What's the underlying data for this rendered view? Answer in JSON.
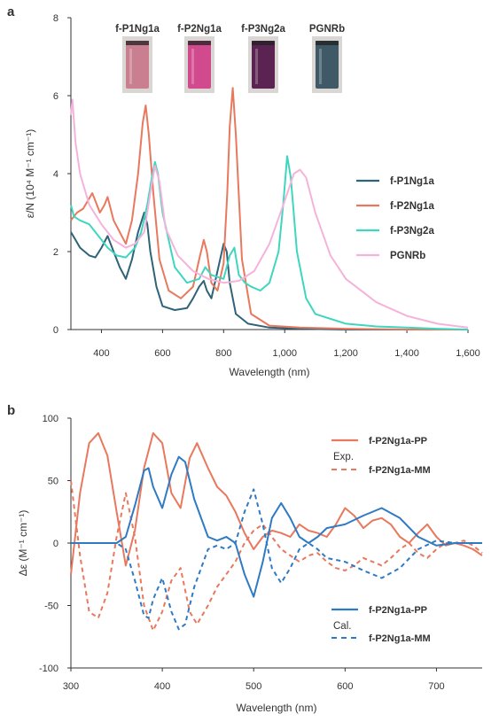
{
  "chart_data": [
    {
      "panel": "a",
      "type": "line",
      "xlabel": "Wavelength (nm)",
      "ylabel": "ε/N (10⁴ M⁻¹ cm⁻¹)",
      "xlim": [
        300,
        1600
      ],
      "ylim": [
        0,
        8
      ],
      "xticks": [
        "400",
        "600",
        "800",
        "1,000",
        "1,200",
        "1,400",
        "1,600"
      ],
      "yticks": [
        "0",
        "2",
        "4",
        "6",
        "8"
      ],
      "vial_labels": [
        "f-P1Ng1a",
        "f-P2Ng1a",
        "f-P3Ng2a",
        "PGNRb"
      ],
      "vial_colors": [
        "#c97f8f",
        "#d24a8e",
        "#5a2351",
        "#3f5a66"
      ],
      "legend_position": "right",
      "series": [
        {
          "name": "f-P1Ng1a",
          "color": "#2e6378",
          "x": [
            300,
            315,
            330,
            360,
            380,
            400,
            420,
            440,
            460,
            480,
            500,
            520,
            540,
            550,
            560,
            580,
            600,
            620,
            640,
            680,
            700,
            720,
            735,
            745,
            760,
            780,
            800,
            810,
            820,
            840,
            880,
            950,
            1050,
            1200,
            1400,
            1600
          ],
          "y": [
            2.5,
            2.3,
            2.1,
            1.9,
            1.85,
            2.1,
            2.4,
            2.0,
            1.6,
            1.3,
            1.8,
            2.5,
            3.0,
            2.7,
            2.0,
            1.1,
            0.6,
            0.55,
            0.5,
            0.55,
            0.8,
            1.1,
            1.25,
            1.0,
            0.8,
            1.5,
            2.2,
            2.0,
            1.2,
            0.4,
            0.15,
            0.05,
            0.02,
            0.0,
            0.0,
            0.0
          ]
        },
        {
          "name": "f-P2Ng1a",
          "color": "#e8785e",
          "x": [
            300,
            320,
            340,
            355,
            370,
            380,
            395,
            410,
            420,
            440,
            460,
            480,
            500,
            520,
            535,
            545,
            555,
            570,
            590,
            620,
            660,
            700,
            720,
            735,
            745,
            760,
            780,
            800,
            812,
            820,
            830,
            840,
            860,
            890,
            950,
            1050,
            1200,
            1400,
            1600
          ],
          "y": [
            2.8,
            3.0,
            3.1,
            3.3,
            3.5,
            3.3,
            3.0,
            3.2,
            3.4,
            2.8,
            2.5,
            2.2,
            2.8,
            4.0,
            5.3,
            5.75,
            5.0,
            3.5,
            1.8,
            1.0,
            0.8,
            1.1,
            1.8,
            2.3,
            2.0,
            1.2,
            1.0,
            1.7,
            3.5,
            5.2,
            6.2,
            5.0,
            1.8,
            0.4,
            0.1,
            0.05,
            0.02,
            0.0,
            0.0
          ]
        },
        {
          "name": "f-P3Ng2a",
          "color": "#3fd6c0",
          "x": [
            300,
            310,
            330,
            360,
            380,
            400,
            420,
            450,
            480,
            510,
            530,
            550,
            565,
            575,
            585,
            600,
            640,
            680,
            720,
            740,
            760,
            800,
            820,
            835,
            850,
            870,
            890,
            920,
            950,
            980,
            995,
            1008,
            1020,
            1040,
            1070,
            1100,
            1200,
            1300,
            1400,
            1500,
            1600
          ],
          "y": [
            3.2,
            2.9,
            2.8,
            2.7,
            2.5,
            2.3,
            2.1,
            1.9,
            1.85,
            2.1,
            2.5,
            3.2,
            3.9,
            4.3,
            4.0,
            3.0,
            1.6,
            1.2,
            1.3,
            1.6,
            1.4,
            1.3,
            1.9,
            2.1,
            1.4,
            1.2,
            1.1,
            1.0,
            1.2,
            2.0,
            3.2,
            4.45,
            3.9,
            2.0,
            0.8,
            0.4,
            0.15,
            0.08,
            0.05,
            0.02,
            0.0
          ]
        },
        {
          "name": "PGNRb",
          "color": "#f5b3dc",
          "x": [
            300,
            305,
            315,
            330,
            360,
            400,
            440,
            480,
            510,
            540,
            560,
            575,
            590,
            610,
            650,
            700,
            750,
            800,
            850,
            900,
            950,
            1000,
            1030,
            1050,
            1070,
            1100,
            1150,
            1200,
            1300,
            1400,
            1500,
            1600
          ],
          "y": [
            5.5,
            5.9,
            4.8,
            4.0,
            3.2,
            2.7,
            2.3,
            2.1,
            2.2,
            2.5,
            3.5,
            4.2,
            3.8,
            2.6,
            1.9,
            1.5,
            1.3,
            1.2,
            1.25,
            1.5,
            2.2,
            3.3,
            4.0,
            4.1,
            3.9,
            3.0,
            1.9,
            1.3,
            0.7,
            0.35,
            0.15,
            0.05
          ]
        }
      ]
    },
    {
      "panel": "b",
      "type": "line",
      "xlabel": "Wavelength (nm)",
      "ylabel": "Δε (M⁻¹ cm⁻¹)",
      "xlim": [
        300,
        750
      ],
      "ylim": [
        -100,
        100
      ],
      "xticks": [
        "300",
        "400",
        "500",
        "600",
        "700"
      ],
      "yticks": [
        "100",
        "50",
        "0",
        "-50",
        "-100"
      ],
      "groups": [
        {
          "label": "Exp.",
          "color": "#e8785e",
          "solid_name": "f-P2Ng1a-PP",
          "dashed_name": "f-P2Ng1a-MM"
        },
        {
          "label": "Cal.",
          "color": "#2f7ac3",
          "solid_name": "f-P2Ng1a-PP",
          "dashed_name": "f-P2Ng1a-MM"
        }
      ],
      "series": [
        {
          "name": "f-P2Ng1a-PP",
          "group": "Exp.",
          "color": "#e8785e",
          "style": "solid",
          "x": [
            300,
            310,
            320,
            330,
            340,
            350,
            360,
            370,
            380,
            390,
            400,
            410,
            420,
            430,
            438,
            450,
            460,
            470,
            480,
            490,
            500,
            510,
            520,
            530,
            540,
            550,
            560,
            570,
            580,
            590,
            600,
            610,
            620,
            630,
            640,
            650,
            660,
            670,
            680,
            690,
            700,
            710,
            720,
            730,
            740,
            750
          ],
          "y": [
            -25,
            40,
            80,
            88,
            70,
            25,
            -18,
            10,
            60,
            88,
            80,
            40,
            28,
            68,
            80,
            60,
            45,
            38,
            25,
            8,
            -5,
            5,
            10,
            8,
            5,
            15,
            10,
            8,
            5,
            15,
            28,
            22,
            12,
            18,
            20,
            15,
            5,
            0,
            8,
            15,
            5,
            -2,
            0,
            -2,
            -5,
            -10
          ]
        },
        {
          "name": "f-P2Ng1a-MM",
          "group": "Exp.",
          "color": "#e8785e",
          "style": "dashed",
          "x": [
            300,
            310,
            320,
            330,
            340,
            350,
            360,
            370,
            380,
            390,
            400,
            410,
            420,
            430,
            438,
            450,
            460,
            470,
            480,
            490,
            500,
            510,
            520,
            530,
            540,
            550,
            560,
            570,
            580,
            590,
            600,
            610,
            620,
            630,
            640,
            650,
            660,
            670,
            680,
            690,
            700,
            710,
            720,
            730,
            740,
            750
          ],
          "y": [
            50,
            -10,
            -55,
            -60,
            -40,
            5,
            40,
            5,
            -50,
            -70,
            -55,
            -30,
            -20,
            -55,
            -65,
            -50,
            -35,
            -25,
            -15,
            0,
            10,
            15,
            5,
            -5,
            -10,
            -15,
            -10,
            -8,
            -15,
            -20,
            -22,
            -18,
            -12,
            -15,
            -18,
            -12,
            -5,
            0,
            -8,
            -12,
            -5,
            0,
            0,
            2,
            -2,
            -8
          ]
        },
        {
          "name": "f-P2Ng1a-PP",
          "group": "Cal.",
          "color": "#2f7ac3",
          "style": "solid",
          "x": [
            300,
            320,
            340,
            350,
            360,
            370,
            380,
            385,
            390,
            400,
            410,
            418,
            425,
            435,
            450,
            460,
            470,
            480,
            490,
            500,
            510,
            520,
            530,
            540,
            550,
            560,
            570,
            580,
            600,
            620,
            640,
            660,
            680,
            700,
            720,
            750
          ],
          "y": [
            0,
            0,
            0,
            0,
            5,
            30,
            58,
            60,
            45,
            28,
            55,
            69,
            65,
            35,
            5,
            2,
            5,
            0,
            -25,
            -43,
            -15,
            20,
            32,
            20,
            5,
            0,
            5,
            12,
            15,
            22,
            28,
            20,
            5,
            -2,
            0,
            0
          ]
        },
        {
          "name": "f-P2Ng1a-MM",
          "group": "Cal.",
          "color": "#2f7ac3",
          "style": "dashed",
          "x": [
            300,
            320,
            340,
            350,
            360,
            370,
            380,
            385,
            390,
            400,
            410,
            418,
            425,
            435,
            450,
            460,
            470,
            480,
            490,
            500,
            510,
            520,
            530,
            540,
            550,
            560,
            570,
            580,
            600,
            620,
            640,
            660,
            680,
            700,
            720,
            750
          ],
          "y": [
            0,
            0,
            0,
            0,
            -5,
            -30,
            -58,
            -60,
            -45,
            -28,
            -55,
            -69,
            -65,
            -35,
            -5,
            -2,
            -5,
            0,
            25,
            43,
            15,
            -20,
            -32,
            -20,
            -5,
            0,
            -5,
            -12,
            -15,
            -22,
            -28,
            -20,
            -5,
            2,
            0,
            0
          ]
        }
      ]
    }
  ]
}
